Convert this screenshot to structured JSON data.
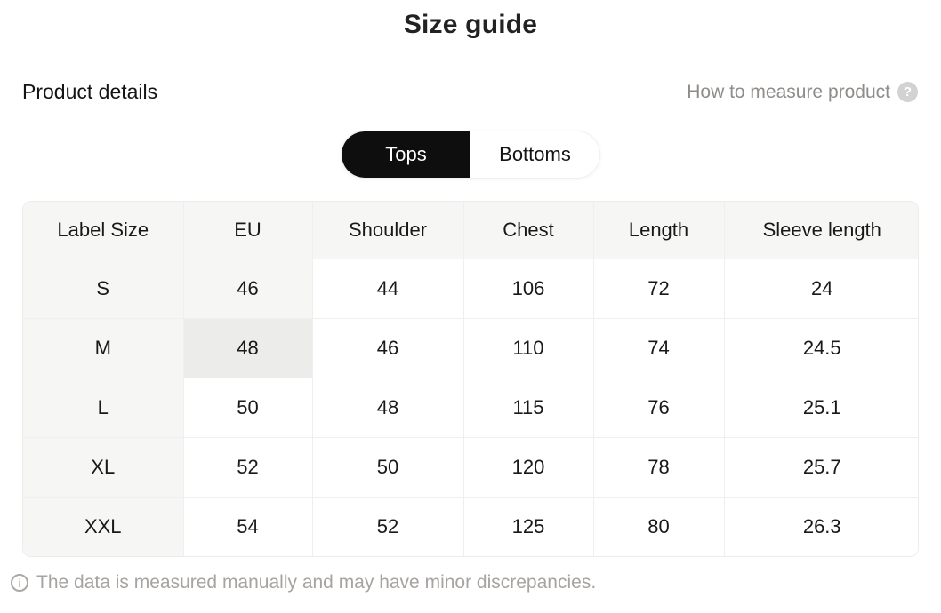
{
  "header": {
    "title": "Size guide",
    "section_title": "Product details",
    "measure_link_label": "How to measure product",
    "question_icon_glyph": "?"
  },
  "tabs": {
    "items": [
      {
        "label": "Tops",
        "selected": true
      },
      {
        "label": "Bottoms",
        "selected": false
      }
    ]
  },
  "size_table": {
    "columns": [
      "Label Size",
      "EU",
      "Shoulder",
      "Chest",
      "Length",
      "Sleeve length"
    ],
    "rows": [
      [
        "S",
        "46",
        "44",
        "106",
        "72",
        "24"
      ],
      [
        "M",
        "48",
        "46",
        "110",
        "74",
        "24.5"
      ],
      [
        "L",
        "50",
        "48",
        "115",
        "76",
        "25.1"
      ],
      [
        "XL",
        "52",
        "50",
        "120",
        "78",
        "25.7"
      ],
      [
        "XXL",
        "54",
        "52",
        "125",
        "80",
        "26.3"
      ]
    ],
    "shaded_cells": [
      {
        "row": 0,
        "col": 1,
        "style": "light"
      },
      {
        "row": 1,
        "col": 1,
        "style": "highlight"
      }
    ]
  },
  "footer": {
    "info_icon_glyph": "i",
    "disclaimer": "The data is measured manually and may have minor discrepancies."
  },
  "colors": {
    "selected_tab_bg": "#0e0e0e",
    "table_header_bg": "#f6f6f5",
    "highlight_cell_bg": "#ececea",
    "muted_text": "#8f8c89",
    "border": "#ececec"
  }
}
